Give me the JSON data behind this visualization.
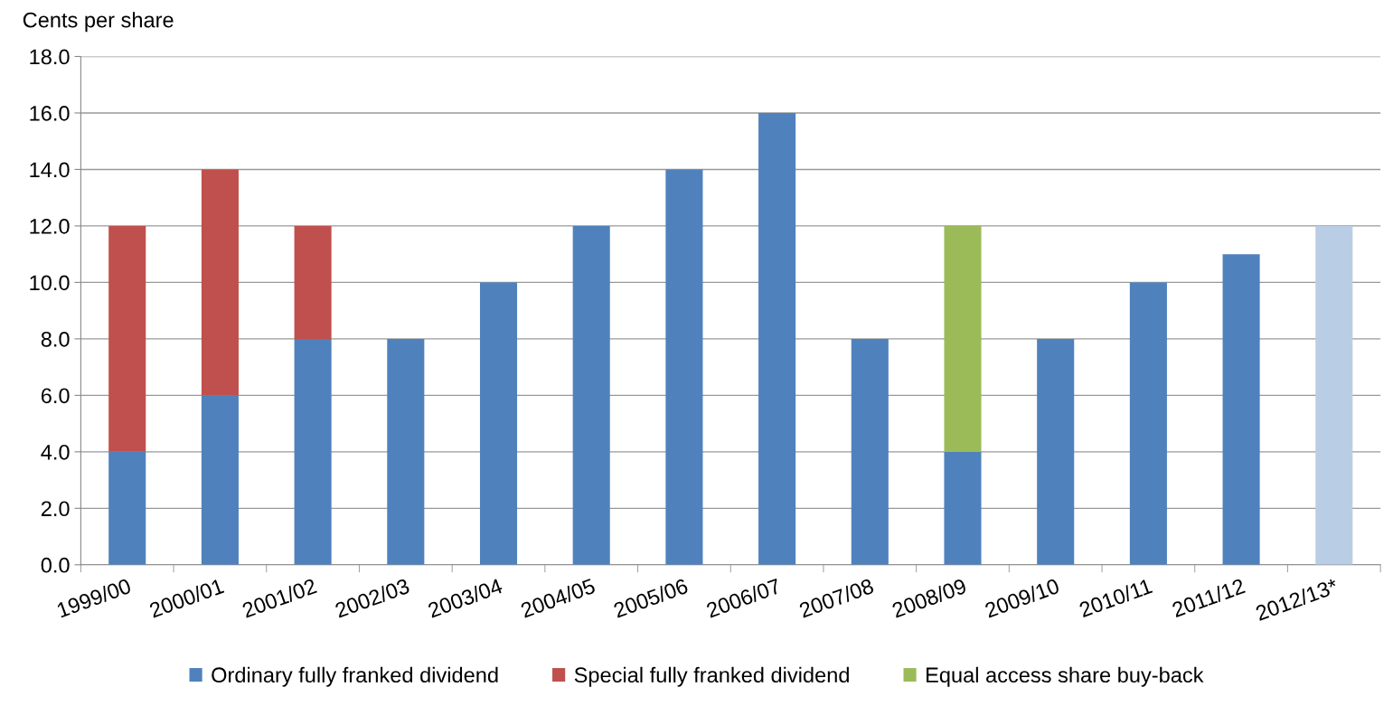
{
  "chart_data": {
    "type": "bar",
    "stacked": true,
    "ylabel": "Cents per share",
    "categories": [
      "1999/00",
      "2000/01",
      "2001/02",
      "2002/03",
      "2003/04",
      "2004/05",
      "2005/06",
      "2006/07",
      "2007/08",
      "2008/09",
      "2009/10",
      "2010/11",
      "2011/12",
      "2012/13*"
    ],
    "series": [
      {
        "name": "Ordinary fully franked dividend",
        "color": "#4f81bd",
        "values": [
          4,
          6,
          8,
          8,
          10,
          12,
          14,
          16,
          8,
          4,
          8,
          10,
          11,
          null
        ]
      },
      {
        "name": "Special fully franked dividend",
        "color": "#c0504d",
        "values": [
          8,
          8,
          4,
          null,
          null,
          null,
          null,
          null,
          null,
          null,
          null,
          null,
          null,
          null
        ]
      },
      {
        "name": "Equal access share buy-back",
        "color": "#9bbb59",
        "values": [
          null,
          null,
          null,
          null,
          null,
          null,
          null,
          null,
          null,
          8,
          null,
          null,
          null,
          null
        ]
      },
      {
        "color": "#b9cde5",
        "values": [
          null,
          null,
          null,
          null,
          null,
          null,
          null,
          null,
          null,
          null,
          null,
          null,
          null,
          12
        ]
      }
    ],
    "ylim": [
      0,
      18
    ],
    "yticks": [
      {
        "value": 0,
        "label": "0.0"
      },
      {
        "value": 2,
        "label": "2.0"
      },
      {
        "value": 4,
        "label": "4.0"
      },
      {
        "value": 6,
        "label": "6.0"
      },
      {
        "value": 8,
        "label": "8.0"
      },
      {
        "value": 10,
        "label": "10.0"
      },
      {
        "value": 12,
        "label": "12.0"
      },
      {
        "value": 14,
        "label": "14.0"
      },
      {
        "value": 16,
        "label": "16.0"
      },
      {
        "value": 18,
        "label": "18.0"
      }
    ],
    "grid": "y",
    "legend": "bottom"
  }
}
